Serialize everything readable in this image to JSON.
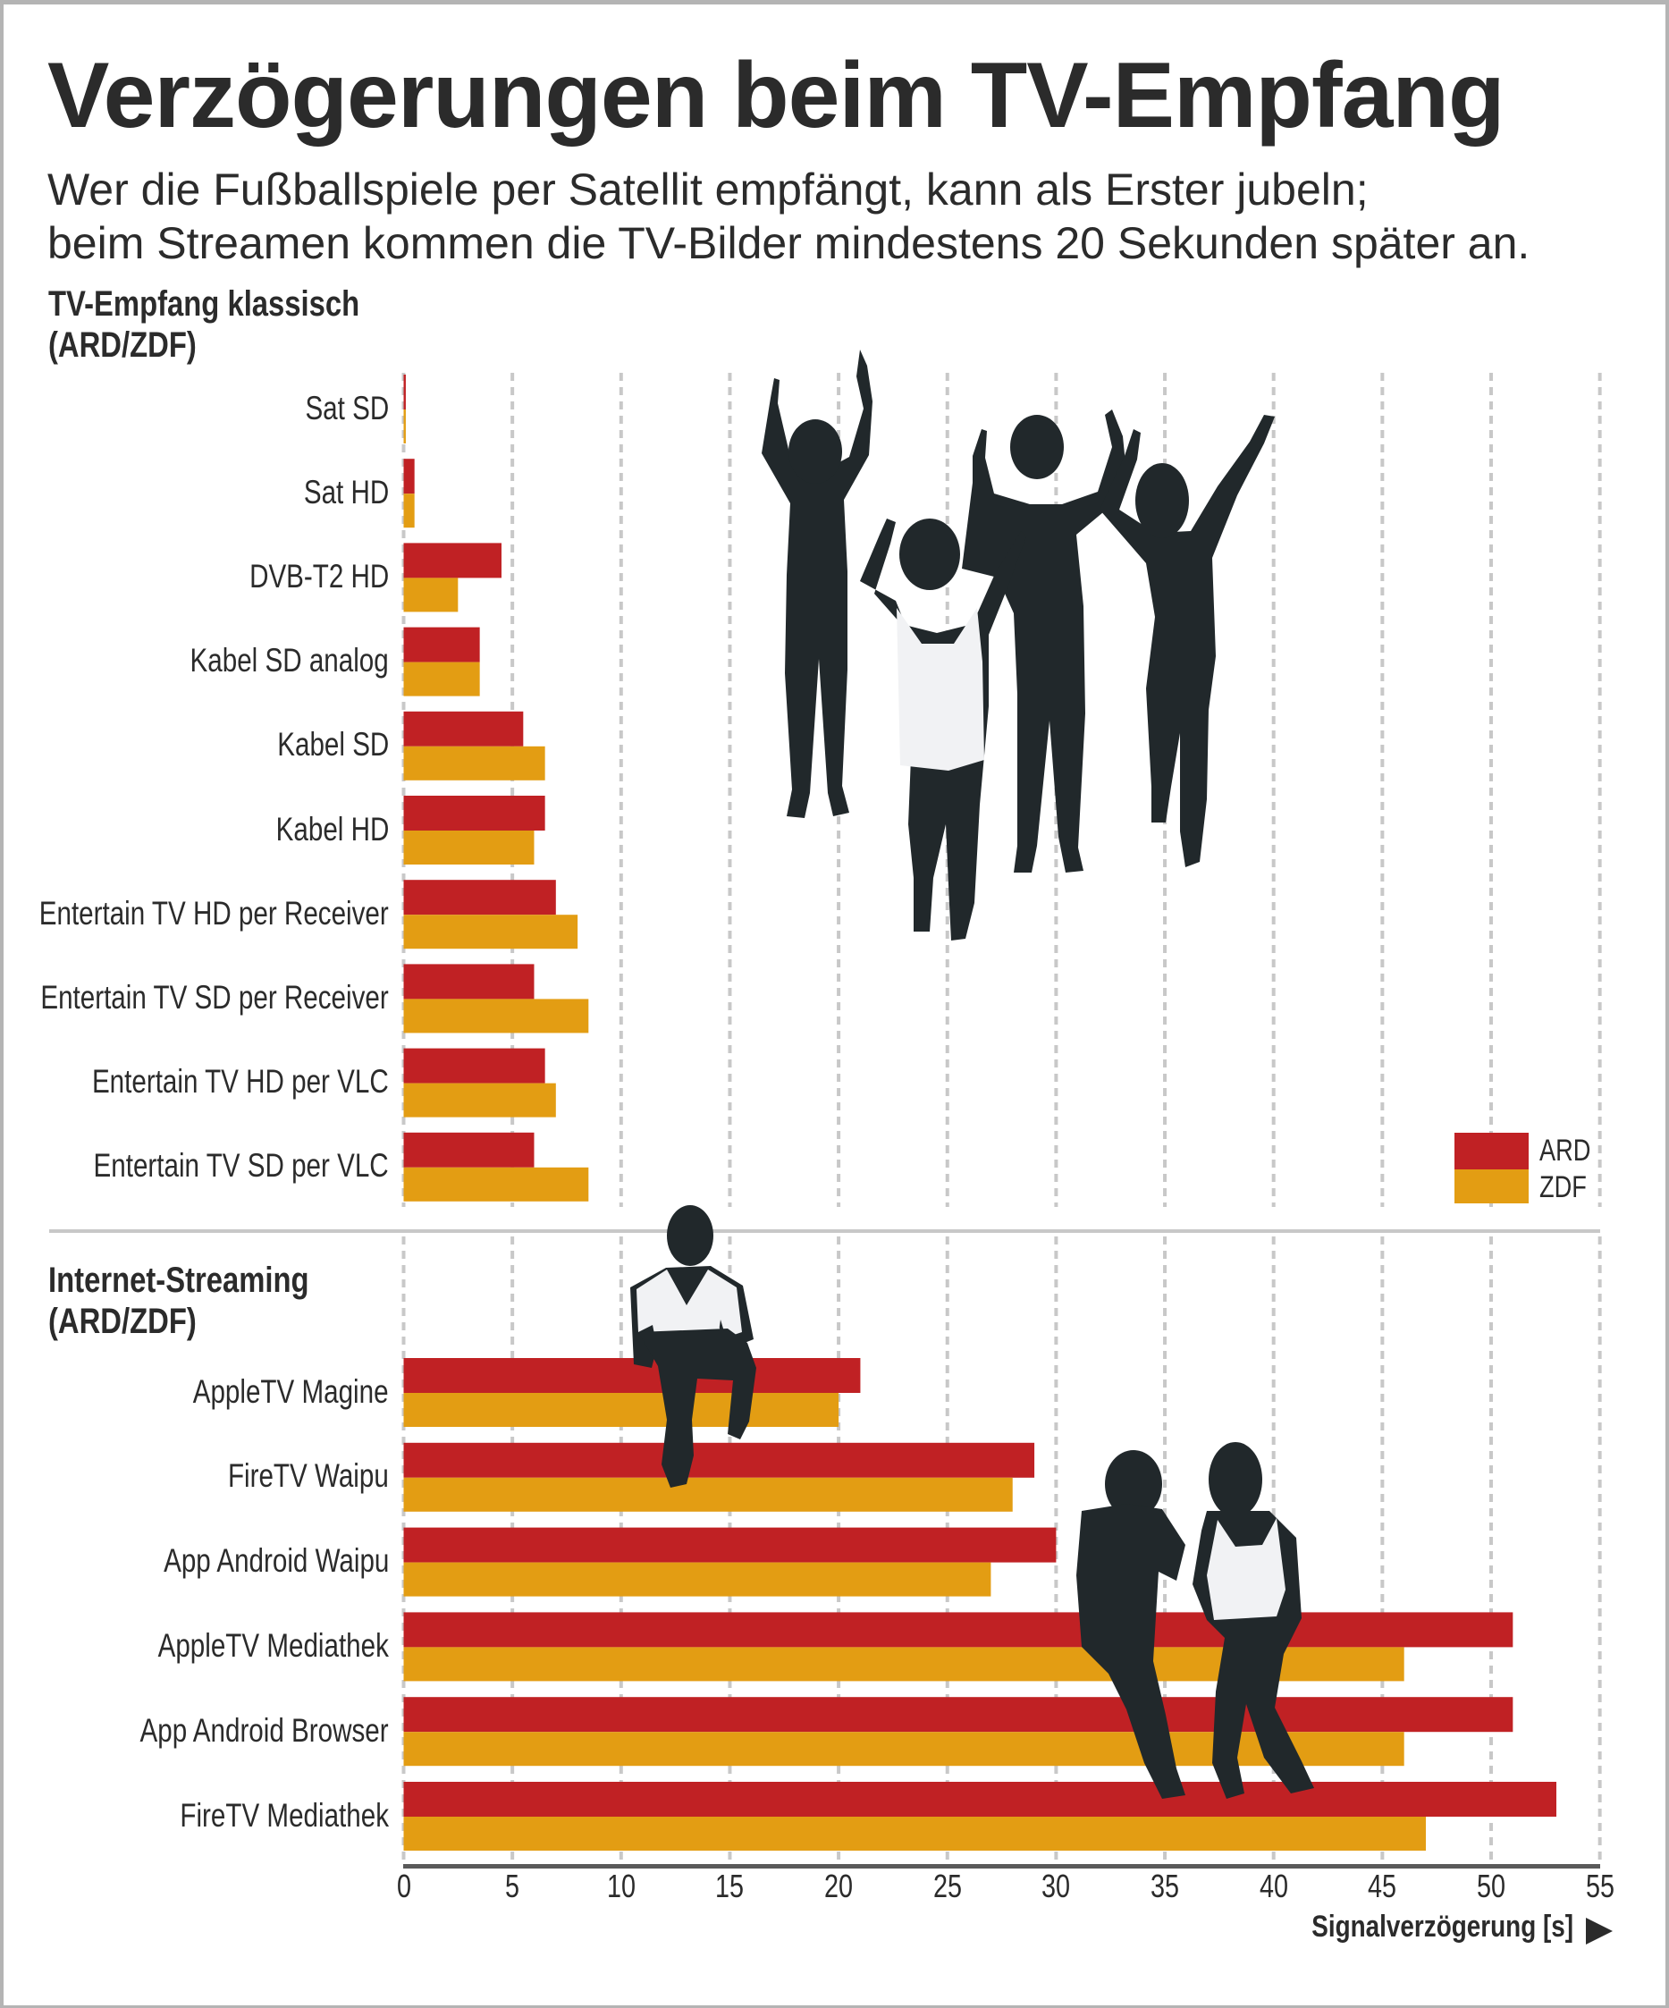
{
  "header": {
    "title": "Verzögerungen beim TV-Empfang",
    "subtitle_line1": "Wer die Fußballspiele per Satellit empfängt, kann als Erster jubeln;",
    "subtitle_line2": "beim Streamen kommen die TV-Bilder mindestens 20 Sekunden später an."
  },
  "colors": {
    "ard": "#c02124",
    "zdf": "#e39d13",
    "silhouette": "#21282b",
    "grid": "#c8c8c8",
    "axis": "#5a5a5a"
  },
  "legend": {
    "ard": "ARD",
    "zdf": "ZDF"
  },
  "chart_data": {
    "type": "bar",
    "orientation": "horizontal",
    "title": "Verzögerungen beim TV-Empfang",
    "xlabel": "Signalverzögerung [s]",
    "xlim": [
      0,
      55
    ],
    "xticks": [
      "0",
      "5",
      "10",
      "15",
      "20",
      "25",
      "30",
      "35",
      "40",
      "45",
      "50",
      "55"
    ],
    "grid": true,
    "legend_position": "right",
    "series_names": [
      "ARD",
      "ZDF"
    ],
    "groups": [
      {
        "title_line1": "TV-Empfang klassisch",
        "title_line2": "(ARD/ZDF)",
        "categories": [
          "Sat SD",
          "Sat HD",
          "DVB-T2 HD",
          "Kabel SD analog",
          "Kabel SD",
          "Kabel HD",
          "Entertain TV HD per Receiver",
          "Entertain TV SD per Receiver",
          "Entertain TV HD per VLC",
          "Entertain TV SD per VLC"
        ],
        "series": [
          {
            "name": "ARD",
            "values": [
              0.1,
              0.5,
              4.5,
              3.5,
              5.5,
              6.5,
              7.0,
              6.0,
              6.5,
              6.0
            ]
          },
          {
            "name": "ZDF",
            "values": [
              0.1,
              0.5,
              2.5,
              3.5,
              6.5,
              6.0,
              8.0,
              8.5,
              7.0,
              8.5
            ]
          }
        ]
      },
      {
        "title_line1": "Internet-Streaming",
        "title_line2": "(ARD/ZDF)",
        "categories": [
          "AppleTV Magine",
          "FireTV Waipu",
          "App Android Waipu",
          "AppleTV Mediathek",
          "App Android Browser",
          "FireTV Mediathek"
        ],
        "series": [
          {
            "name": "ARD",
            "values": [
              21,
              29,
              30,
              51,
              51,
              53
            ]
          },
          {
            "name": "ZDF",
            "values": [
              20,
              28,
              27,
              46,
              46,
              47
            ]
          }
        ]
      }
    ]
  },
  "decorations": {
    "cheering_group": "silhouette-icon",
    "sitting_man": "silhouette-icon",
    "sitting_couple": "silhouette-icon",
    "axis_arrow": "arrow-right-icon"
  }
}
